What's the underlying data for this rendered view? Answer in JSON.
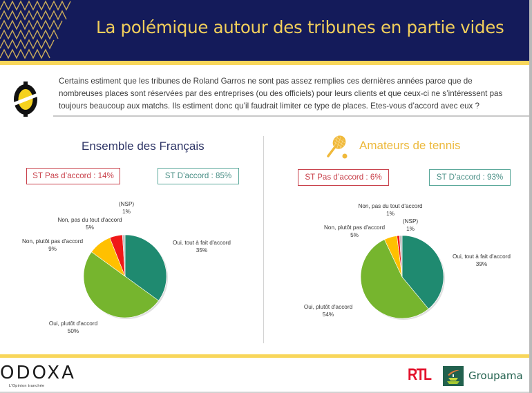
{
  "header": {
    "title": "La polémique autour des tribunes en partie vides"
  },
  "question": {
    "text": "Certains estiment que les tribunes de Roland Garros ne sont pas assez remplies ces dernières années parce que de nombreuses places sont réservées par des entreprises (ou des officiels) pour leurs clients et que ceux-ci ne s’intéressent pas toujours beaucoup aux matchs. Ils estiment donc qu’il faudrait limiter ce type de places. Etes-vous d’accord avec eux ?"
  },
  "colors": {
    "header_bg": "#141b5a",
    "title_gold": "#f2cf5b",
    "accent_yellow": "#f8d65a",
    "oui_tout_a_fait": "#1f8a70",
    "oui_plutot": "#76b52e",
    "non_plutot_pas": "#ffc000",
    "non_pas_du_tout": "#f01818",
    "nsp": "#bfbfbf"
  },
  "sections": [
    {
      "title": "Ensemble des Français",
      "st_disagree": "ST Pas d’accord : 14%",
      "st_agree": "ST D’accord : 85%"
    },
    {
      "title": "Amateurs de tennis",
      "icon": "tennis-racket-icon",
      "st_disagree": "ST Pas d’accord : 6%",
      "st_agree": "ST D’accord : 93%"
    }
  ],
  "chart_data": [
    {
      "type": "pie",
      "title": "Ensemble des Français",
      "slices": [
        {
          "label": "Oui, tout à fait d'accord",
          "value": 35,
          "display": "35%"
        },
        {
          "label": "Oui, plutôt d'accord",
          "value": 50,
          "display": "50%"
        },
        {
          "label": "Non, plutôt pas d'accord",
          "value": 9,
          "display": "9%"
        },
        {
          "label": "Non, pas du tout d'accord",
          "value": 5,
          "display": "5%"
        },
        {
          "label": "(NSP)",
          "value": 1,
          "display": "1%"
        }
      ]
    },
    {
      "type": "pie",
      "title": "Amateurs de tennis",
      "slices": [
        {
          "label": "Oui, tout à fait d'accord",
          "value": 39,
          "display": "39%"
        },
        {
          "label": "Oui, plutôt d'accord",
          "value": 54,
          "display": "54%"
        },
        {
          "label": "Non, plutôt pas d'accord",
          "value": 5,
          "display": "5%"
        },
        {
          "label": "Non, pas du tout d'accord",
          "value": 1,
          "display": "1%"
        },
        {
          "label": "(NSP)",
          "value": 1,
          "display": "1%"
        }
      ]
    }
  ],
  "footer": {
    "odoxa_logo": "ODOXA",
    "odoxa_tagline": "L'Opinion tranchée",
    "rtl_logo": "RTL",
    "groupama_logo": "Groupama"
  }
}
